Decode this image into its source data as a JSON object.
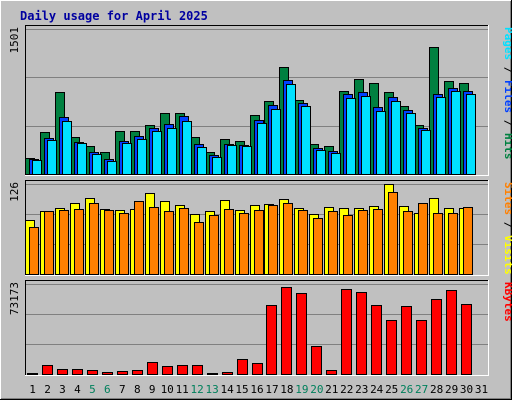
{
  "chart_data": {
    "type": "bar",
    "title": "Daily usage for April 2025",
    "categories": [
      "1",
      "2",
      "3",
      "4",
      "5",
      "6",
      "7",
      "8",
      "9",
      "10",
      "11",
      "12",
      "13",
      "14",
      "15",
      "16",
      "17",
      "18",
      "19",
      "20",
      "21",
      "22",
      "23",
      "24",
      "25",
      "26",
      "27",
      "28",
      "29",
      "30",
      "31"
    ],
    "weekend_days": [
      "5",
      "6",
      "12",
      "13",
      "19",
      "20",
      "26",
      "27"
    ],
    "panels": [
      {
        "id": "hits-files-pages",
        "ymax_label": "1501",
        "ylim": [
          0,
          1501
        ],
        "gridlines": 3,
        "series": [
          {
            "name": "Hits",
            "color": "#008040",
            "values": [
              165,
              433,
              852,
              383,
              292,
              227,
              440,
              440,
              510,
              634,
              629,
              385,
              229,
              367,
              346,
              611,
              755,
              1111,
              767,
              310,
              286,
              860,
              986,
              940,
              854,
              705,
              511,
              1316,
              966,
              938,
              0
            ]
          },
          {
            "name": "Files",
            "color": "#0040FF",
            "values": [
              156,
              371,
              592,
              336,
              232,
              156,
              341,
              398,
              474,
              521,
              599,
              307,
              192,
              315,
              305,
              562,
              716,
              977,
              740,
              271,
              240,
              829,
              844,
              690,
              795,
              663,
              481,
              828,
              893,
              861,
              0
            ]
          },
          {
            "name": "Pages",
            "color": "#00E0FF",
            "values": [
              145,
              354,
              552,
              318,
              208,
              138,
              320,
              364,
              444,
              475,
              545,
              281,
              172,
              301,
              290,
              527,
              675,
              932,
              701,
              251,
              219,
              787,
              803,
              657,
              759,
              630,
              453,
              796,
              858,
              824,
              0
            ]
          }
        ]
      },
      {
        "id": "visits-sites",
        "ymax_label": "126",
        "ylim": [
          0,
          126
        ],
        "gridlines": 3,
        "series": [
          {
            "name": "Visits",
            "color": "#FFFF00",
            "values": [
              76,
              88,
              93,
              100,
              107,
              91,
              89,
              91,
              114,
              102,
              96,
              84,
              88,
              103,
              89,
              97,
              98,
              105,
              92,
              84,
              94,
              93,
              92,
              95,
              126,
              95,
              86,
              107,
              93,
              93,
              0
            ]
          },
          {
            "name": "Sites",
            "color": "#FF8000",
            "values": [
              66,
              88,
              90,
              91,
              100,
              89,
              85,
              102,
              94,
              88,
              93,
              73,
              82,
              91,
              86,
              90,
              97,
              100,
              90,
              79,
              88,
              82,
              89,
              91,
              115,
              88,
              100,
              86,
              85,
              94,
              0
            ]
          }
        ]
      },
      {
        "id": "kbytes",
        "ymax_label": "73173",
        "ylim": [
          0,
          73173
        ],
        "gridlines": 3,
        "series": [
          {
            "name": "KBytes",
            "color": "#FF0000",
            "values": [
              650,
              7300,
              4200,
              3800,
              3400,
              2000,
              2400,
              3300,
              9800,
              6900,
              7500,
              7500,
              1100,
              2000,
              12300,
              9000,
              56300,
              71000,
              66200,
              23100,
              3300,
              69300,
              66900,
              56400,
              43600,
              55600,
              44300,
              61100,
              68700,
              57300,
              0
            ]
          }
        ]
      }
    ],
    "side_labels": [
      {
        "parts": [
          {
            "text": "Pages",
            "color": "#00E0FF"
          },
          {
            "text": " / ",
            "color": "#000000"
          },
          {
            "text": "Files",
            "color": "#0040FF"
          },
          {
            "text": " / ",
            "color": "#000000"
          },
          {
            "text": "Hits",
            "color": "#008040"
          }
        ]
      },
      {
        "parts": [
          {
            "text": "Sites",
            "color": "#FF8000"
          },
          {
            "text": " / ",
            "color": "#000000"
          },
          {
            "text": "Visits",
            "color": "#FFFF00"
          }
        ]
      },
      {
        "parts": [
          {
            "text": "KBytes",
            "color": "#FF0000"
          }
        ]
      }
    ],
    "colors": {
      "background": "#C0C0C0",
      "title": "#0000A0",
      "weekday_label": "#000000",
      "weekend_label": "#00805C",
      "gridline": "#808080"
    }
  }
}
